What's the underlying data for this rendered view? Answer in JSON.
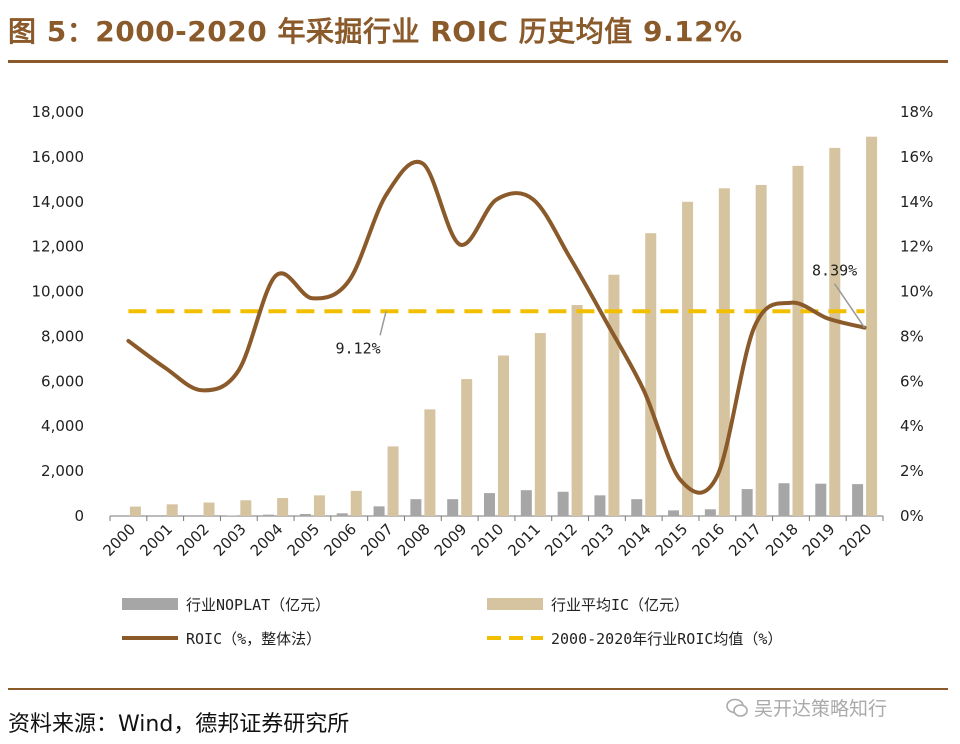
{
  "header": {
    "title": "图 5：2000-2020 年采掘行业 ROIC 历史均值 9.12%"
  },
  "footer": {
    "source": "资料来源：Wind，德邦证券研究所",
    "watermark": "吴开达策略知行"
  },
  "colors": {
    "noplat": "#a6a6a6",
    "ic": "#d6c3a0",
    "roic": "#8a5a2b",
    "avg": "#f2bf00",
    "title": "#8a5a2b"
  },
  "chart_data": {
    "type": "bar+line",
    "title": "2000-2020 年采掘行业 ROIC 历史均值 9.12%",
    "categories": [
      "2000",
      "2001",
      "2002",
      "2003",
      "2004",
      "2005",
      "2006",
      "2007",
      "2008",
      "2009",
      "2010",
      "2011",
      "2012",
      "2013",
      "2014",
      "2015",
      "2016",
      "2017",
      "2018",
      "2019",
      "2020"
    ],
    "left_axis": {
      "min": 0,
      "max": 18000,
      "step": 2000,
      "ticks": [
        "0",
        "2,000",
        "4,000",
        "6,000",
        "8,000",
        "10,000",
        "12,000",
        "14,000",
        "16,000",
        "18,000"
      ]
    },
    "right_axis": {
      "min": 0,
      "max": 18,
      "step": 2,
      "ticks": [
        "0%",
        "2%",
        "4%",
        "6%",
        "8%",
        "10%",
        "12%",
        "14%",
        "16%",
        "18%"
      ]
    },
    "series": [
      {
        "name": "行业NOPLAT（亿元）",
        "type": "bar",
        "axis": "left",
        "values": [
          0,
          0,
          0,
          20,
          60,
          90,
          120,
          430,
          750,
          750,
          1020,
          1150,
          1080,
          920,
          750,
          250,
          300,
          1200,
          1460,
          1440,
          1420
        ]
      },
      {
        "name": "行业平均IC（亿元）",
        "type": "bar",
        "axis": "left",
        "values": [
          420,
          520,
          600,
          700,
          800,
          920,
          1120,
          3100,
          4750,
          6100,
          7150,
          8150,
          9400,
          10750,
          12600,
          14000,
          14600,
          14750,
          15600,
          16400,
          16900
        ]
      },
      {
        "name": "ROIC（%，整体法）",
        "type": "line",
        "axis": "right",
        "values": [
          7.8,
          6.6,
          5.6,
          6.5,
          10.7,
          9.7,
          10.5,
          14.3,
          15.7,
          12.1,
          14.1,
          14.1,
          11.5,
          8.6,
          5.6,
          1.6,
          1.8,
          8.4,
          9.5,
          8.8,
          8.39
        ]
      },
      {
        "name": "2000-2020年行业ROIC均值（%）",
        "type": "hline",
        "axis": "right",
        "value": 9.12
      }
    ],
    "annotations": [
      {
        "text": "9.12%",
        "target": "average-line"
      },
      {
        "text": "8.39%",
        "target": "roic-2020"
      }
    ]
  }
}
